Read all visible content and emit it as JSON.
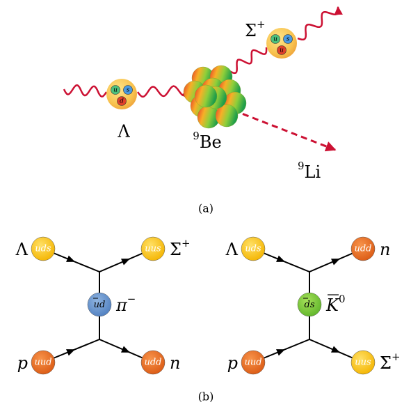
{
  "panel_a": {
    "caption": "(a)",
    "lambda": {
      "label": "Λ",
      "quarks": [
        "u",
        "s",
        "d"
      ]
    },
    "target": {
      "mass_number": "9",
      "symbol": "Be"
    },
    "sigma": {
      "label": "Σ",
      "charge": "+",
      "quarks": [
        "u",
        "s",
        "u"
      ]
    },
    "product": {
      "mass_number": "9",
      "symbol": "Li"
    }
  },
  "panel_b": {
    "caption": "(b)",
    "diagrams": [
      {
        "in_top": {
          "particle": "Λ",
          "quarks": "uds"
        },
        "out_top": {
          "particle": "Σ",
          "charge": "+",
          "quarks": "uus"
        },
        "exchange": {
          "antiquark": "u",
          "quark": "d",
          "particle": "π",
          "charge": "−"
        },
        "in_bottom": {
          "particle": "p",
          "quarks": "uud"
        },
        "out_bottom": {
          "particle": "n",
          "quarks": "udd"
        }
      },
      {
        "in_top": {
          "particle": "Λ",
          "quarks": "uds"
        },
        "out_top": {
          "particle": "n",
          "quarks": "udd"
        },
        "exchange": {
          "antiquark": "d",
          "quark": "s",
          "particle": "K",
          "charge": "0"
        },
        "in_bottom": {
          "particle": "p",
          "quarks": "uud"
        },
        "out_bottom": {
          "particle": "Σ",
          "charge": "+",
          "quarks": "uus"
        }
      }
    ]
  }
}
